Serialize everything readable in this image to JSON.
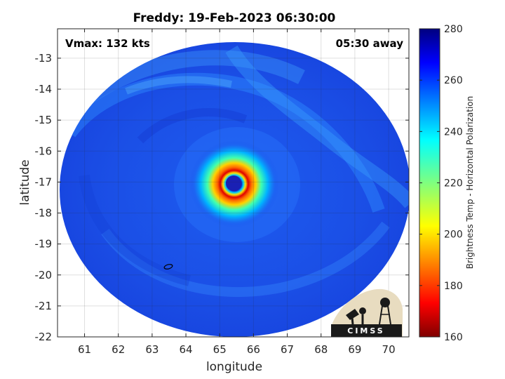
{
  "chart_data": {
    "type": "heatmap",
    "title": "Freddy: 19-Feb-2023 06:30:00",
    "xlabel": "longitude",
    "ylabel": "latitude",
    "xlim": [
      60.2,
      70.6
    ],
    "ylim": [
      -22,
      -12.05
    ],
    "xticks": [
      61,
      62,
      63,
      64,
      65,
      66,
      67,
      68,
      69,
      70
    ],
    "yticks": [
      -13,
      -14,
      -15,
      -16,
      -17,
      -18,
      -19,
      -20,
      -21,
      -22
    ],
    "grid": true,
    "storm_center": {
      "lon": 65.35,
      "lat": -17.05
    },
    "colorbar": {
      "label": "Brightness Temp - Horizontal Polarization",
      "range": [
        160,
        280
      ],
      "ticks": [
        280,
        260,
        240,
        220,
        200,
        180,
        160
      ],
      "colormap": "jet"
    }
  },
  "annotations": {
    "vmax": "Vmax: 132 kts",
    "time_offset": "05:30 away"
  },
  "logo": {
    "text": "CIMSS"
  },
  "colors": {
    "cold": "#7f0000",
    "warm": "#00007f",
    "background_field": "#1c50e8"
  }
}
